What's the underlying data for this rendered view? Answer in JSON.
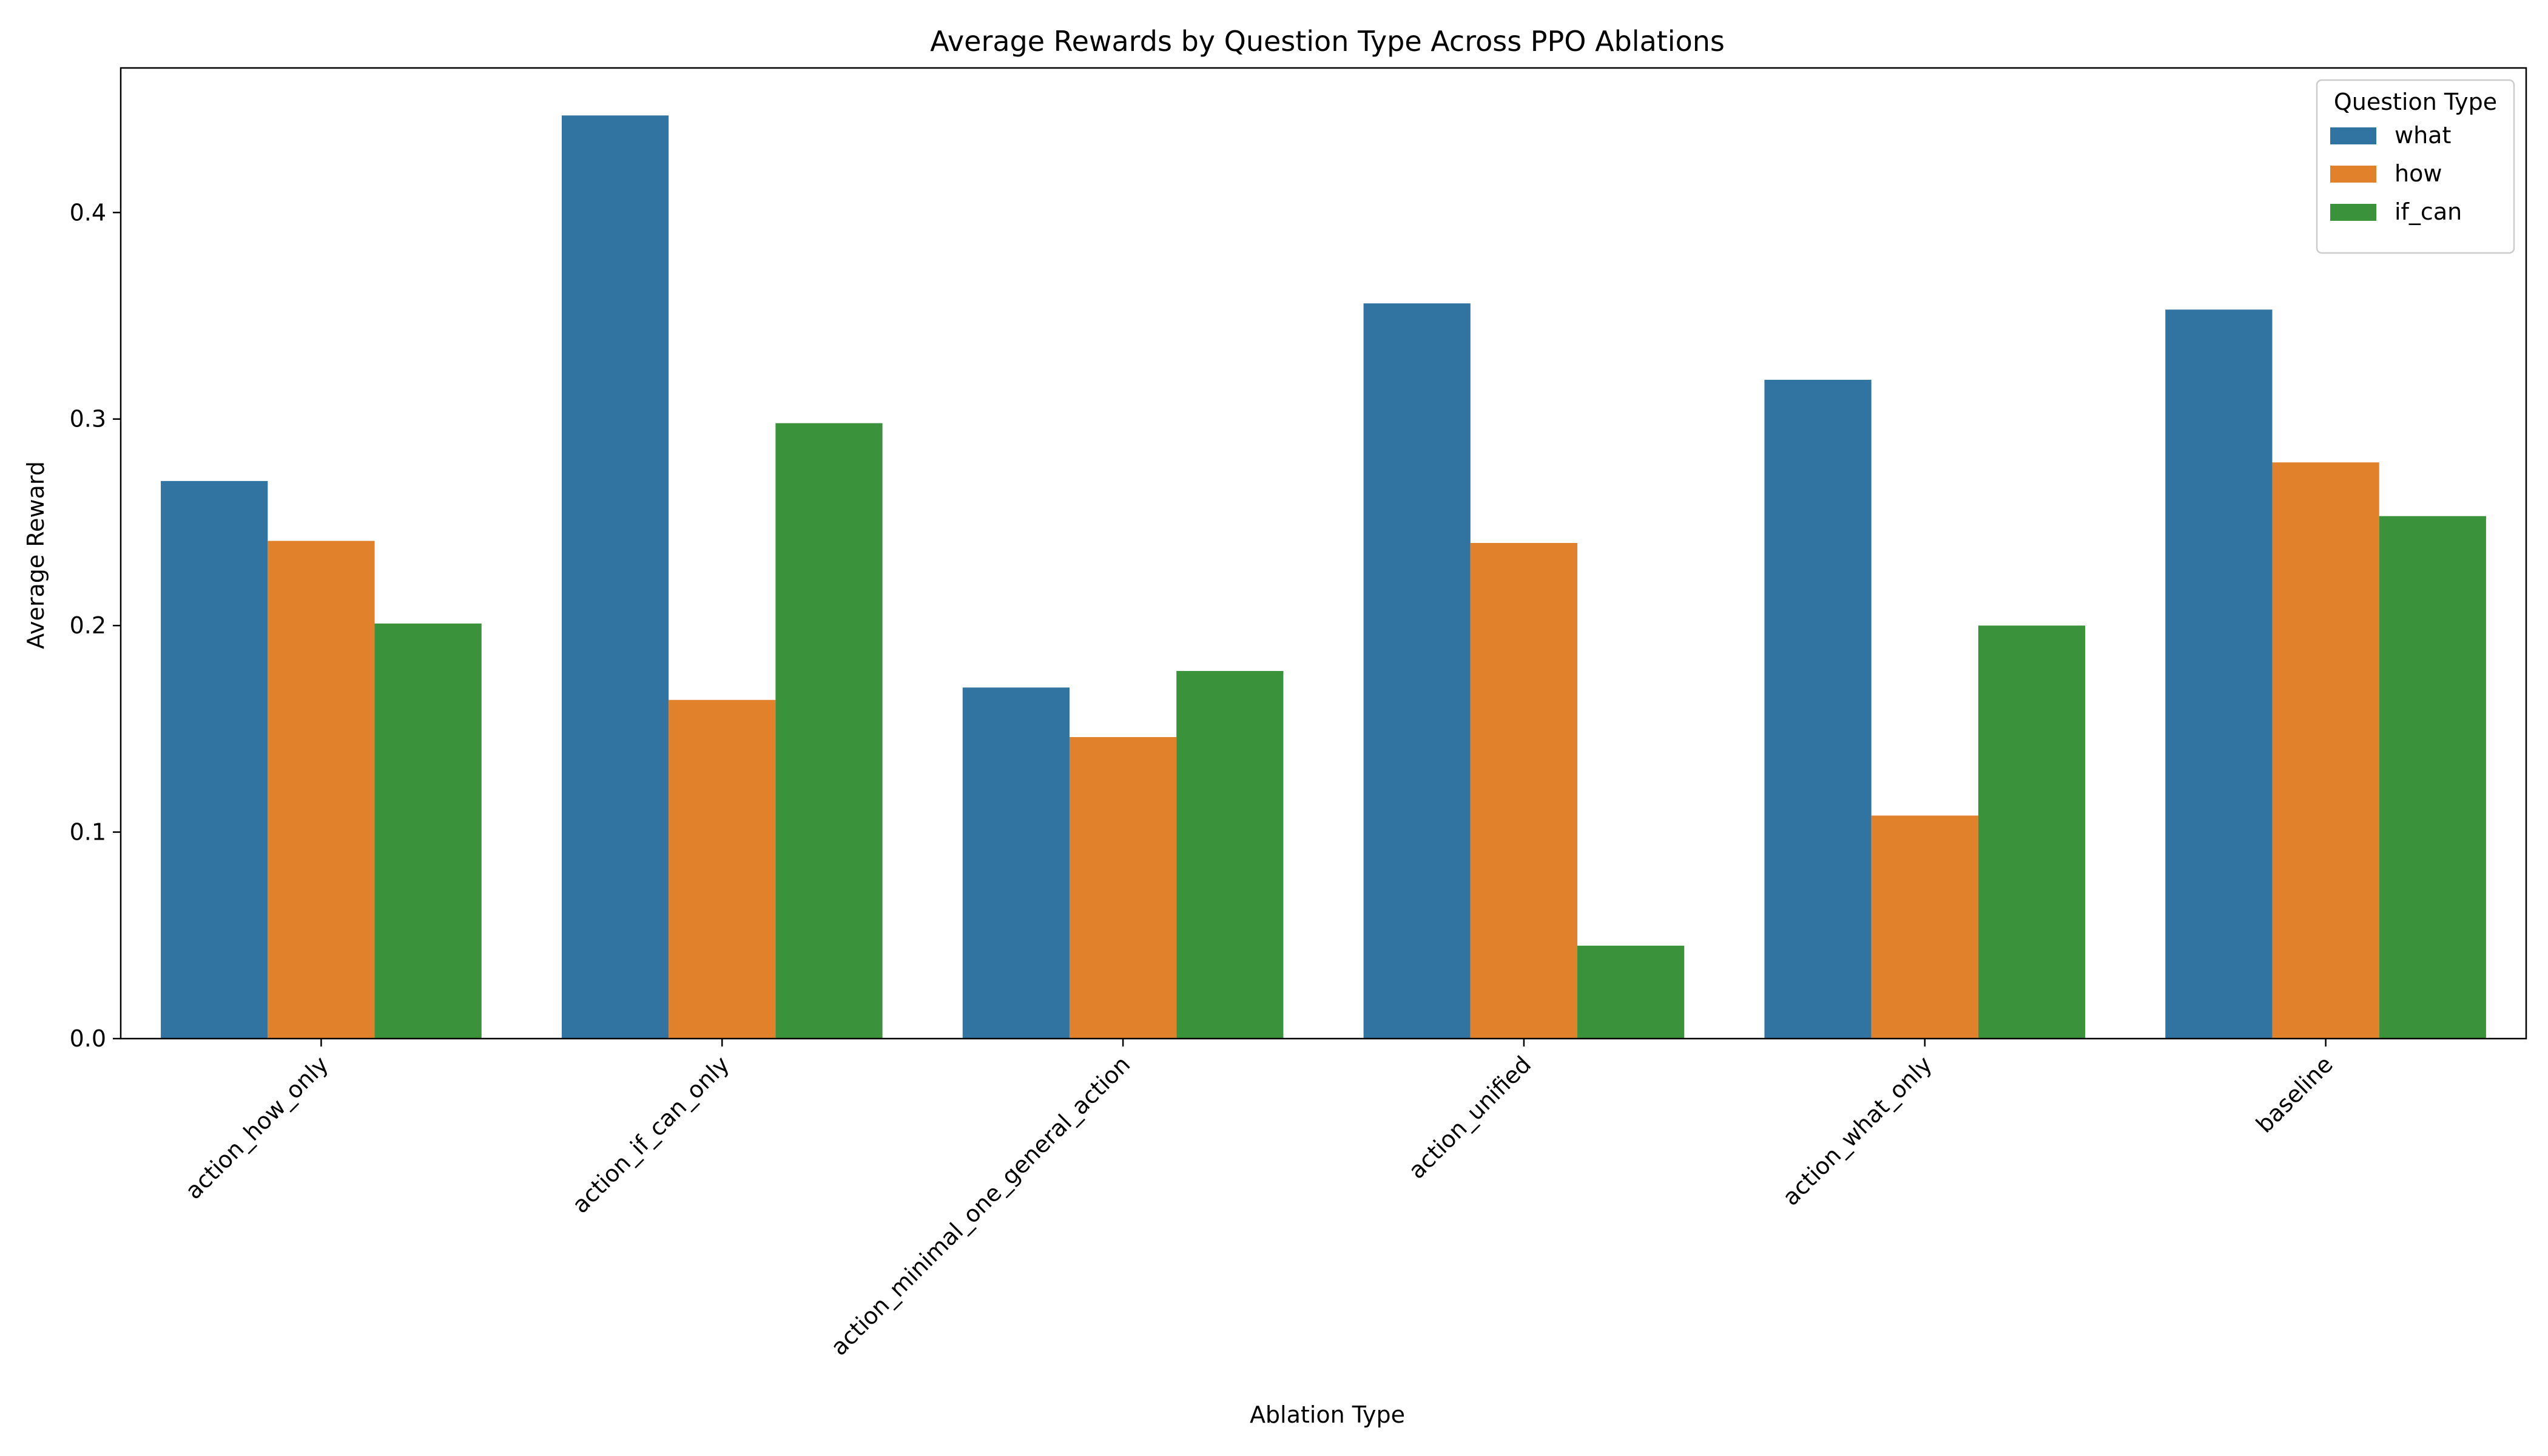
{
  "chart_data": {
    "type": "bar",
    "title": "Average Rewards by Question Type Across PPO Ablations",
    "xlabel": "Ablation Type",
    "ylabel": "Average Reward",
    "categories": [
      "action_how_only",
      "action_if_can_only",
      "action_minimal_one_general_action",
      "action_unified",
      "action_what_only",
      "baseline"
    ],
    "series": [
      {
        "name": "what",
        "color": "#3274a1",
        "values": [
          0.27,
          0.447,
          0.17,
          0.356,
          0.319,
          0.353
        ]
      },
      {
        "name": "how",
        "color": "#e1812c",
        "values": [
          0.241,
          0.164,
          0.146,
          0.24,
          0.108,
          0.279
        ]
      },
      {
        "name": "if_can",
        "color": "#3a923a",
        "values": [
          0.201,
          0.298,
          0.178,
          0.045,
          0.2,
          0.253
        ]
      }
    ],
    "ylim": [
      0,
      0.47
    ],
    "yticks": [
      0.0,
      0.1,
      0.2,
      0.3,
      0.4
    ],
    "ytick_labels": [
      "0.0",
      "0.1",
      "0.2",
      "0.3",
      "0.4"
    ],
    "legend": {
      "title": "Question Type",
      "position": "top-right"
    },
    "grid": false
  }
}
